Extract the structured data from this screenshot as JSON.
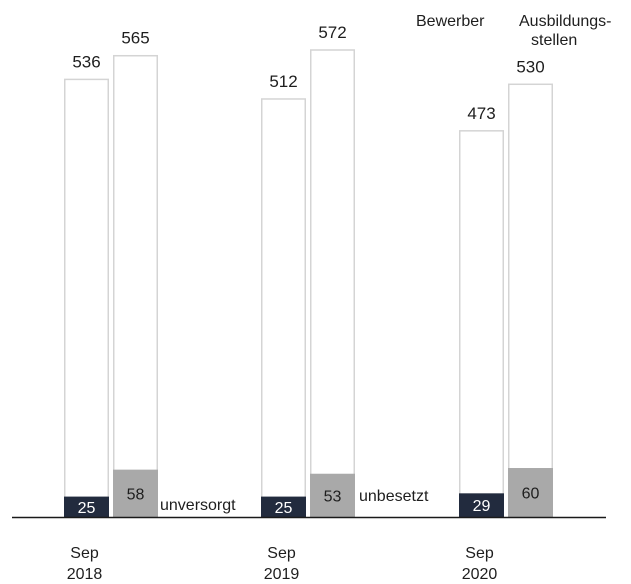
{
  "chart_data": {
    "type": "bar",
    "categories": [
      "Sep\n2018",
      "Sep\n2019",
      "Sep\n2020"
    ],
    "series": [
      {
        "name": "Bewerber",
        "values": [
          536,
          512,
          473
        ],
        "sub_values": [
          25,
          25,
          29
        ],
        "sub_name": "unversorgt"
      },
      {
        "name": "Ausbildungs-\nstellen",
        "values": [
          565,
          572,
          530
        ],
        "sub_values": [
          58,
          53,
          60
        ],
        "sub_name": "unbesetzt"
      }
    ],
    "ylim": [
      0,
      572
    ],
    "grid": false,
    "legend_position": "top-right",
    "colors": {
      "bar_outline": "#d4d4d4",
      "bewerber_sub": "#222b3e",
      "stellen_sub": "#a9a9a9",
      "baseline": "#1a1a1a",
      "unbesetzt_text": "#808080"
    }
  }
}
